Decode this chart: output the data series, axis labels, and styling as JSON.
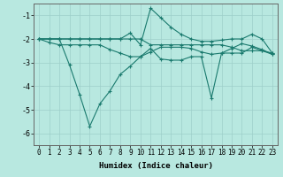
{
  "x": [
    0,
    1,
    2,
    3,
    4,
    5,
    6,
    7,
    8,
    9,
    10,
    11,
    12,
    13,
    14,
    15,
    16,
    17,
    18,
    19,
    20,
    21,
    22,
    23
  ],
  "line1": [
    -2.0,
    -2.0,
    -2.0,
    -2.0,
    -2.0,
    -2.0,
    -2.0,
    -2.0,
    -2.0,
    -1.75,
    -2.25,
    -0.7,
    -1.1,
    -1.5,
    -1.8,
    -2.0,
    -2.1,
    -2.1,
    -2.05,
    -2.0,
    -2.0,
    -1.8,
    -2.0,
    -2.6
  ],
  "line2": [
    -2.0,
    -2.15,
    -2.25,
    -2.25,
    -2.25,
    -2.25,
    -2.25,
    -2.45,
    -2.6,
    -2.75,
    -2.75,
    -2.55,
    -2.35,
    -2.35,
    -2.35,
    -2.4,
    -2.55,
    -2.65,
    -2.6,
    -2.4,
    -2.2,
    -2.3,
    -2.45,
    -2.65
  ],
  "line3": [
    -2.0,
    -2.0,
    -2.0,
    -2.0,
    -2.0,
    -2.0,
    -2.0,
    -2.0,
    -2.0,
    -2.0,
    -2.0,
    -2.25,
    -2.25,
    -2.25,
    -2.25,
    -2.25,
    -2.25,
    -2.25,
    -2.25,
    -2.35,
    -2.5,
    -2.5,
    -2.5,
    -2.65
  ],
  "line4": [
    -2.0,
    -2.0,
    -2.0,
    -3.1,
    -4.35,
    -5.7,
    -4.75,
    -4.2,
    -3.5,
    -3.15,
    -2.75,
    -2.4,
    -2.85,
    -2.9,
    -2.9,
    -2.75,
    -2.75,
    -4.5,
    -2.6,
    -2.6,
    -2.6,
    -2.35,
    -2.5,
    -2.6
  ],
  "bg_color": "#b8e8e0",
  "line_color": "#1a7a6e",
  "grid_color": "#9dcfca",
  "xlabel": "Humidex (Indice chaleur)",
  "ylim": [
    -6.5,
    -0.5
  ],
  "xlim": [
    -0.5,
    23.5
  ],
  "yticks": [
    -6,
    -5,
    -4,
    -3,
    -2,
    -1
  ],
  "xticks": [
    0,
    1,
    2,
    3,
    4,
    5,
    6,
    7,
    8,
    9,
    10,
    11,
    12,
    13,
    14,
    15,
    16,
    17,
    18,
    19,
    20,
    21,
    22,
    23
  ],
  "markersize": 3,
  "linewidth": 0.8,
  "tick_fontsize": 5.5,
  "xlabel_fontsize": 6.5
}
